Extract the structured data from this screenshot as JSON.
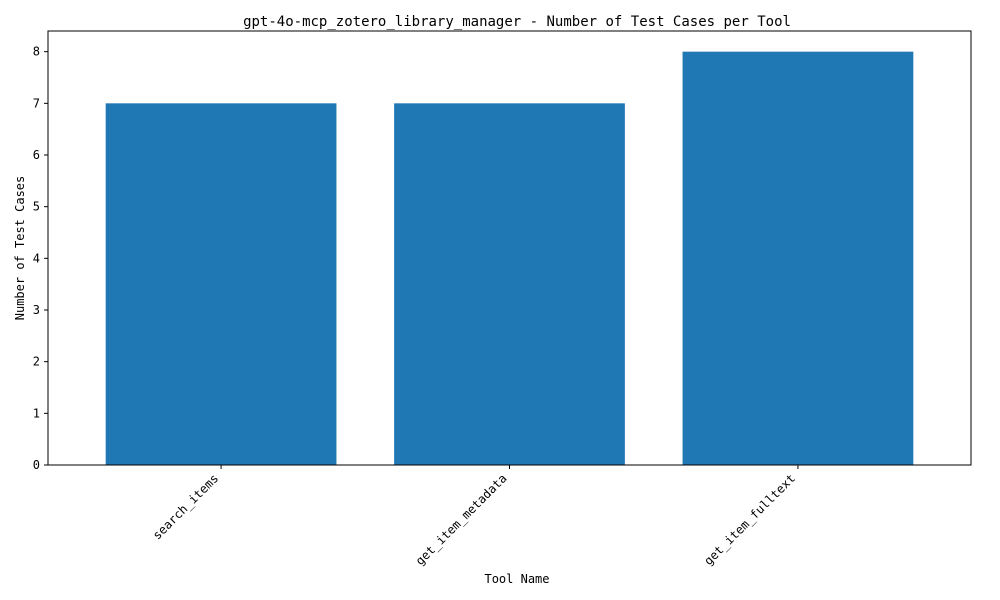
{
  "chart_data": {
    "type": "bar",
    "title": "gpt-4o-mcp_zotero_library_manager - Number of Test Cases per Tool",
    "xlabel": "Tool Name",
    "ylabel": "Number of Test Cases",
    "categories": [
      "search_items",
      "get_item_metadata",
      "get_item_fulltext"
    ],
    "values": [
      7,
      7,
      8
    ],
    "ylim": [
      0,
      8.4
    ],
    "yticks": [
      0,
      1,
      2,
      3,
      4,
      5,
      6,
      7,
      8
    ],
    "bar_color": "#1f77b4",
    "grid": false,
    "legend": false
  }
}
